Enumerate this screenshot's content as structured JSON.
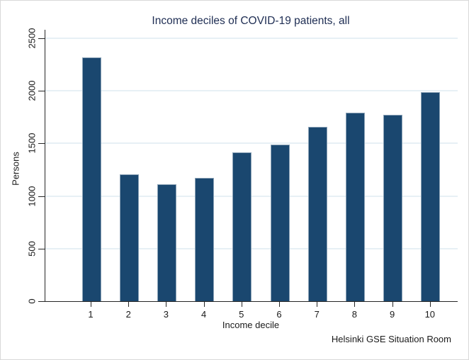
{
  "chart_data": {
    "type": "bar",
    "title": "Income deciles of COVID-19 patients, all",
    "xlabel": "Income decile",
    "ylabel": "Persons",
    "categories": [
      "1",
      "2",
      "3",
      "4",
      "5",
      "6",
      "7",
      "8",
      "9",
      "10"
    ],
    "values": [
      2320,
      1205,
      1110,
      1170,
      1415,
      1490,
      1655,
      1790,
      1770,
      1990
    ],
    "ylim": [
      0,
      2500
    ],
    "yticks": [
      0,
      500,
      1000,
      1500,
      2000,
      2500
    ],
    "grid": true,
    "legend": "none",
    "bar_color": "#1a476f",
    "bar_outline_color": "#8ca3b7",
    "gridline_color": "#e7f0f5",
    "title_color": "#1e2d53",
    "text_color": "#1a1a1a"
  },
  "footer": {
    "attribution": "Helsinki GSE Situation Room"
  }
}
